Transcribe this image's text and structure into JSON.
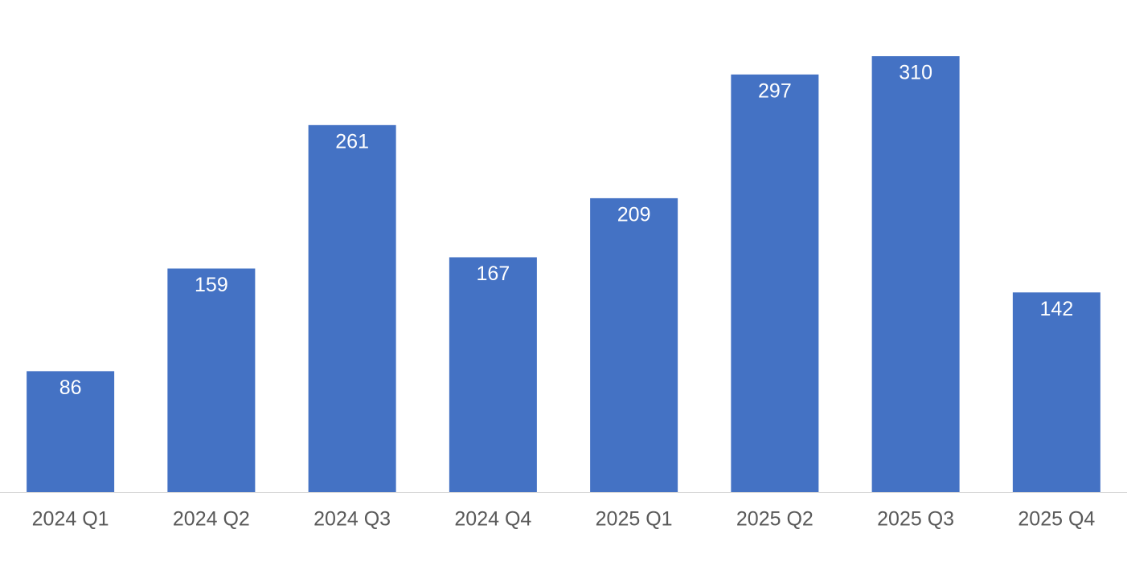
{
  "chart_data": {
    "type": "bar",
    "categories": [
      "2024 Q1",
      "2024 Q2",
      "2024 Q3",
      "2024 Q4",
      "2025 Q1",
      "2025 Q2",
      "2025 Q3",
      "2025 Q4"
    ],
    "values": [
      86,
      159,
      261,
      167,
      209,
      297,
      310,
      142
    ],
    "color": "#4472c4"
  }
}
